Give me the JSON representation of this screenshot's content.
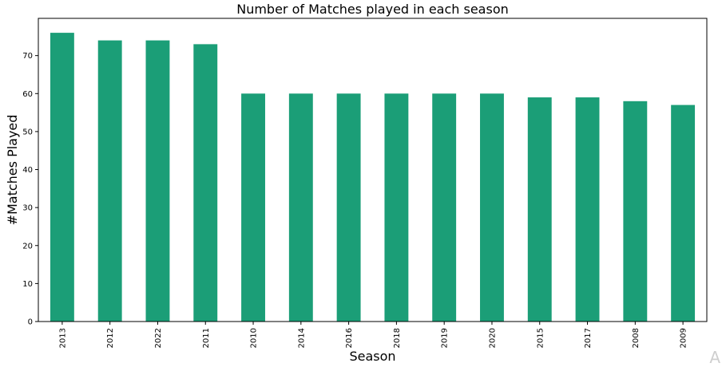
{
  "chart_data": {
    "type": "bar",
    "title": "Number of Matches played in each season",
    "xlabel": "Season",
    "ylabel": "#Matches Played",
    "categories": [
      "2013",
      "2012",
      "2022",
      "2011",
      "2010",
      "2014",
      "2016",
      "2018",
      "2019",
      "2020",
      "2015",
      "2017",
      "2008",
      "2009"
    ],
    "values": [
      76,
      74,
      74,
      73,
      60,
      60,
      60,
      60,
      60,
      60,
      59,
      59,
      58,
      57
    ],
    "ylim": [
      0,
      79.8
    ],
    "yticks": [
      0,
      10,
      20,
      30,
      40,
      50,
      60,
      70
    ],
    "bar_color": "#1b9e77",
    "grid": false,
    "legend": "none"
  },
  "watermark": "A"
}
